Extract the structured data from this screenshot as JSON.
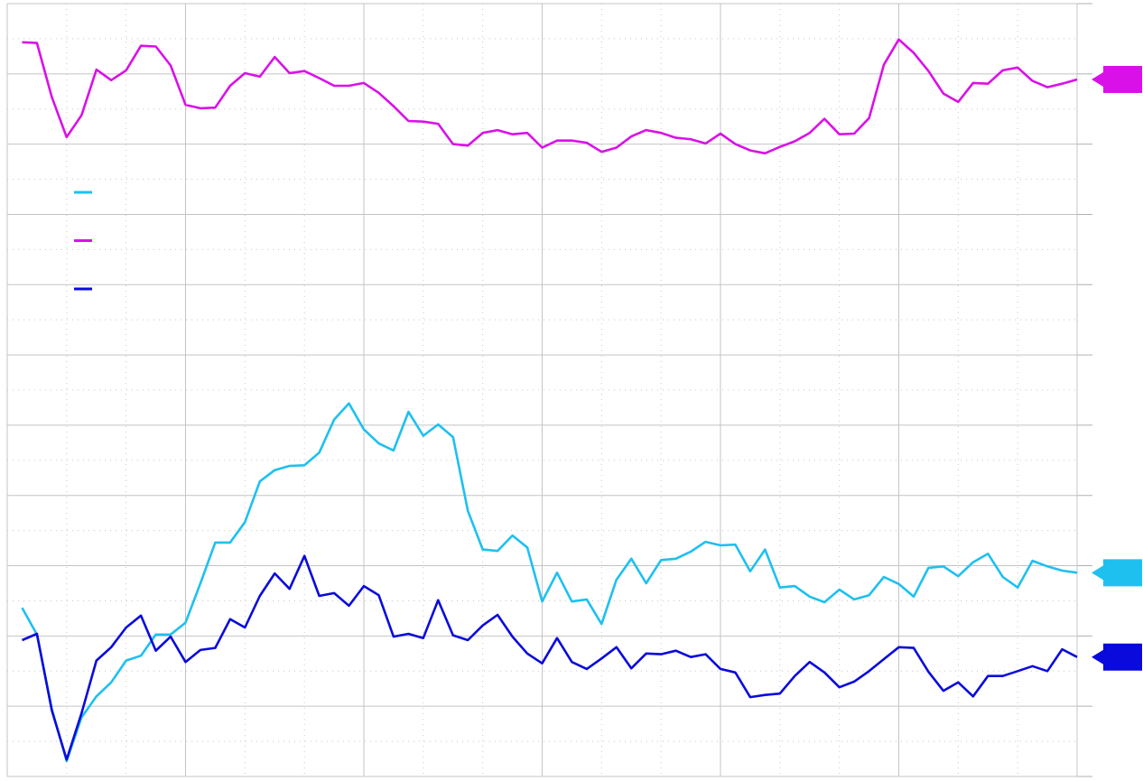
{
  "chart_data": {
    "type": "line",
    "xlim": [
      0,
      72
    ],
    "xticks": [
      0,
      12,
      24,
      36,
      48,
      60,
      72
    ],
    "ylim": [
      0,
      11
    ],
    "yticks": [
      0,
      1,
      2,
      3,
      4,
      5,
      6,
      7,
      8,
      9,
      10,
      11
    ],
    "grid": true,
    "legend": "upper left",
    "x": [
      1,
      2,
      3,
      4,
      5,
      6,
      7,
      8,
      9,
      10,
      11,
      12,
      13,
      14,
      15,
      16,
      17,
      18,
      19,
      20,
      21,
      22,
      23,
      24,
      25,
      26,
      27,
      28,
      29,
      30,
      31,
      32,
      33,
      34,
      35,
      36,
      37,
      38,
      39,
      40,
      41,
      42,
      43,
      44,
      45,
      46,
      47,
      48,
      49,
      50,
      51,
      52,
      53,
      54,
      55,
      56,
      57,
      58,
      59,
      60,
      61,
      62,
      63,
      64,
      65,
      66,
      67,
      68,
      69,
      70,
      71,
      72
    ],
    "series": [
      {
        "color": "#1ec0f0",
        "values": [
          2.4,
          2.02,
          0.96,
          0.22,
          0.84,
          1.14,
          1.34,
          1.65,
          1.72,
          2.02,
          2.02,
          2.19,
          2.75,
          3.33,
          3.33,
          3.62,
          4.2,
          4.36,
          4.42,
          4.43,
          4.61,
          5.08,
          5.31,
          4.94,
          4.74,
          4.64,
          5.19,
          4.85,
          5.01,
          4.83,
          3.78,
          3.23,
          3.21,
          3.43,
          3.26,
          2.49,
          2.9,
          2.49,
          2.52,
          2.17,
          2.8,
          3.1,
          2.75,
          3.08,
          3.1,
          3.2,
          3.34,
          3.29,
          3.3,
          2.92,
          3.23,
          2.69,
          2.71,
          2.56,
          2.48,
          2.66,
          2.52,
          2.58,
          2.84,
          2.74,
          2.56,
          2.97,
          2.99,
          2.85,
          3.05,
          3.17,
          2.84,
          2.69,
          3.07,
          2.99,
          2.93,
          2.9
        ]
      },
      {
        "color": "#d911e8",
        "values": [
          10.45,
          10.44,
          9.67,
          9.1,
          9.41,
          10.06,
          9.91,
          10.05,
          10.4,
          10.39,
          10.12,
          9.56,
          9.51,
          9.52,
          9.83,
          10.01,
          9.96,
          10.24,
          10.01,
          10.04,
          9.94,
          9.83,
          9.83,
          9.87,
          9.73,
          9.54,
          9.33,
          9.32,
          9.29,
          9.0,
          8.98,
          9.16,
          9.2,
          9.14,
          9.16,
          8.95,
          9.05,
          9.05,
          9.02,
          8.89,
          8.95,
          9.11,
          9.2,
          9.16,
          9.09,
          9.07,
          9.01,
          9.15,
          9.0,
          8.91,
          8.87,
          8.96,
          9.04,
          9.16,
          9.36,
          9.14,
          9.15,
          9.37,
          10.13,
          10.49,
          10.3,
          10.04,
          9.72,
          9.6,
          9.87,
          9.86,
          10.05,
          10.09,
          9.9,
          9.81,
          9.86,
          9.92
        ]
      },
      {
        "color": "#0a0adc",
        "values": [
          1.94,
          2.03,
          0.94,
          0.24,
          0.9,
          1.65,
          1.84,
          2.12,
          2.29,
          1.79,
          1.99,
          1.63,
          1.8,
          1.83,
          2.24,
          2.12,
          2.57,
          2.89,
          2.67,
          3.14,
          2.57,
          2.61,
          2.43,
          2.71,
          2.58,
          1.99,
          2.03,
          1.97,
          2.51,
          2.01,
          1.94,
          2.15,
          2.3,
          1.99,
          1.75,
          1.61,
          1.97,
          1.63,
          1.53,
          1.68,
          1.84,
          1.54,
          1.75,
          1.74,
          1.79,
          1.7,
          1.74,
          1.53,
          1.48,
          1.13,
          1.16,
          1.18,
          1.43,
          1.63,
          1.48,
          1.27,
          1.35,
          1.5,
          1.67,
          1.84,
          1.83,
          1.49,
          1.22,
          1.34,
          1.14,
          1.43,
          1.43,
          1.5,
          1.57,
          1.5,
          1.81,
          1.7
        ]
      }
    ]
  }
}
